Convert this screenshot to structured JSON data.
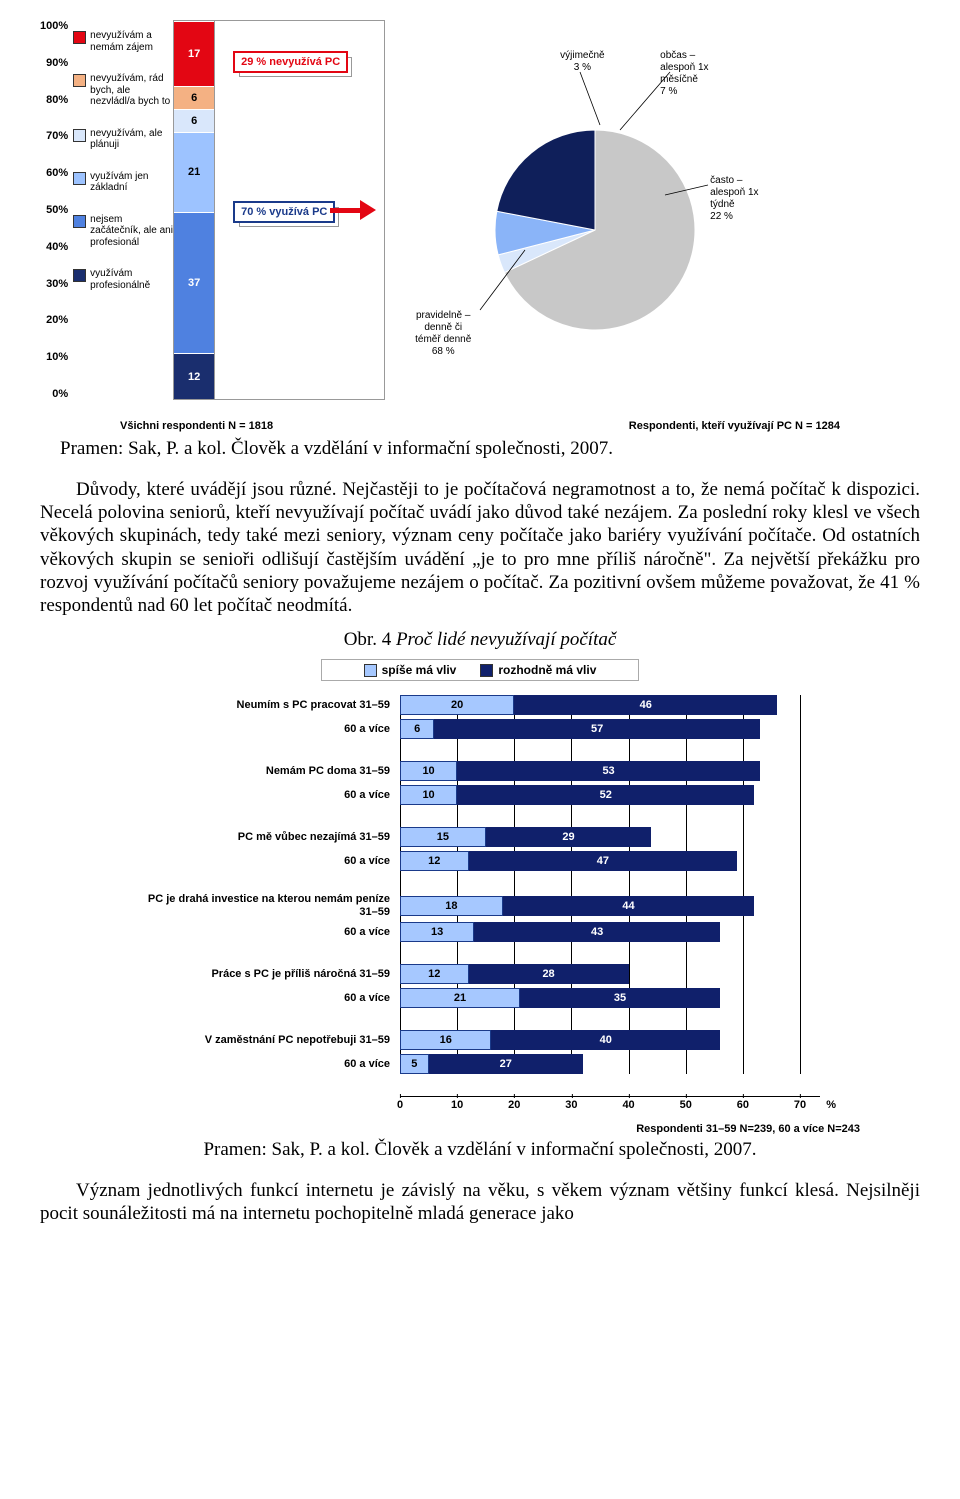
{
  "colors": {
    "red": "#e30613",
    "orange": "#f4b183",
    "paleblue": "#d9e7fb",
    "lightblue": "#9dc3ff",
    "blue": "#3a6fd8",
    "midblue": "#4f81e0",
    "navy": "#1a2e6e",
    "grey": "#c8c8c8",
    "skyblue": "#8ab4f8",
    "darknavy": "#0f1f5a",
    "hbar_light": "#a6c8ff",
    "hbar_dark": "#10206b"
  },
  "stacked_chart": {
    "y_ticks": [
      "100%",
      "90%",
      "80%",
      "70%",
      "60%",
      "50%",
      "40%",
      "30%",
      "20%",
      "10%",
      "0%"
    ],
    "legend": [
      {
        "color": "red",
        "label": "nevyužívám a nemám zájem"
      },
      {
        "color": "orange",
        "label": "nevyužívám, rád bych, ale nezvládl/a bych to"
      },
      {
        "color": "paleblue",
        "label": "nevyužívám, ale plánuji"
      },
      {
        "color": "lightblue",
        "label": "využívám jen základní"
      },
      {
        "color": "midblue",
        "label": "nejsem začátečník, ale ani profesionál"
      },
      {
        "color": "navy",
        "label": "využívám profesionálně"
      }
    ],
    "segments": [
      {
        "value": 12,
        "color": "navy",
        "text_color": "#fff"
      },
      {
        "value": 37,
        "color": "midblue",
        "text_color": "#fff"
      },
      {
        "value": 21,
        "color": "lightblue",
        "text_color": "#000",
        "blank_above": true
      },
      {
        "value": 6,
        "color": "paleblue",
        "text_color": "#000"
      },
      {
        "value": 6,
        "color": "orange",
        "text_color": "#000"
      },
      {
        "value": 17,
        "color": "red",
        "text_color": "#fff"
      }
    ],
    "callout_red": "29 % nevyužívá PC",
    "callout_blue": "70 % využívá PC"
  },
  "pie": {
    "slices": [
      {
        "label": "pravidelně – denně či téměř denně",
        "pct": 68,
        "color": "grey"
      },
      {
        "label": "výjimečně",
        "pct": 3,
        "color": "paleblue"
      },
      {
        "label": "občas – alespoň 1x měsíčně",
        "pct": 7,
        "color": "skyblue"
      },
      {
        "label": "často – alespoň 1x týdně",
        "pct": 22,
        "color": "darknavy"
      }
    ],
    "labels": {
      "l1": "pravidelně –\ndenně či\ntéměř denně\n68 %",
      "l2": "výjimečně\n3 %",
      "l3": "občas –\nalespoň 1x\nměsíčně\n7 %",
      "l4": "často –\nalespoň 1x\ntýdně\n22 %"
    }
  },
  "caption_left": "Všichni respondenti N = 1818",
  "caption_right": "Respondenti, kteří využívají PC N = 1284",
  "source1": "Pramen: Sak, P. a kol. Člověk a vzdělání v informační společnosti, 2007.",
  "para1": "Důvody, které uvádějí jsou různé. Nejčastěji to je počítačová negramotnost a to, že nemá počítač k dispozici. Necelá polovina seniorů, kteří nevyužívají počítač uvádí jako důvod také nezájem. Za poslední roky klesl ve všech věkových skupinách, tedy také mezi seniory, význam ceny počítače jako bariéry využívání počítače. Od ostatních věkových skupin se senioři odlišují častějším uvádění „je to pro mne příliš náročně\". Za největší překážku pro rozvoj využívání počítačů seniory považujeme nezájem o počítač. Za pozitivní ovšem můžeme považovat, že 41 % respondentů nad 60 let počítač neodmítá.",
  "fig4_title_plain": "Obr. 4 ",
  "fig4_title_italic": "Proč lidé nevyužívají počítač",
  "hbar": {
    "legend_light": "spíše má vliv",
    "legend_dark": "rozhodně má vliv",
    "x_ticks": [
      0,
      10,
      20,
      30,
      40,
      50,
      60,
      70
    ],
    "x_unit": "%",
    "x_max": 70,
    "groups": [
      {
        "rows": [
          {
            "label": "Neumím s PC pracovat 31–59",
            "light": 20,
            "dark": 46
          },
          {
            "label": "60 a více",
            "light": 6,
            "dark": 57
          }
        ]
      },
      {
        "rows": [
          {
            "label": "Nemám PC doma 31–59",
            "light": 10,
            "dark": 53
          },
          {
            "label": "60 a více",
            "light": 10,
            "dark": 52
          }
        ]
      },
      {
        "rows": [
          {
            "label": "PC mě vůbec nezajímá 31–59",
            "light": 15,
            "dark": 29
          },
          {
            "label": "60 a více",
            "light": 12,
            "dark": 47
          }
        ]
      },
      {
        "rows": [
          {
            "label": "PC je drahá investice na kterou nemám peníze 31–59",
            "light": 18,
            "dark": 44
          },
          {
            "label": "60 a více",
            "light": 13,
            "dark": 43
          }
        ]
      },
      {
        "rows": [
          {
            "label": "Práce s PC je příliš náročná 31–59",
            "light": 12,
            "dark": 28
          },
          {
            "label": "60 a více",
            "light": 21,
            "dark": 35
          }
        ]
      },
      {
        "rows": [
          {
            "label": "V zaměstnání PC nepotřebuji 31–59",
            "light": 16,
            "dark": 40
          },
          {
            "label": "60 a více",
            "light": 5,
            "dark": 27
          }
        ]
      }
    ]
  },
  "resp_note": "Respondenti 31–59 N=239, 60 a více N=243",
  "source2": "Pramen: Sak, P. a kol. Člověk a vzdělání v informační společnosti, 2007.",
  "para2": "Význam jednotlivých funkcí internetu je závislý na věku, s věkem význam většiny funkcí klesá. Nejsilněji pocit sounáležitosti má na internetu pochopitelně mladá generace jako"
}
